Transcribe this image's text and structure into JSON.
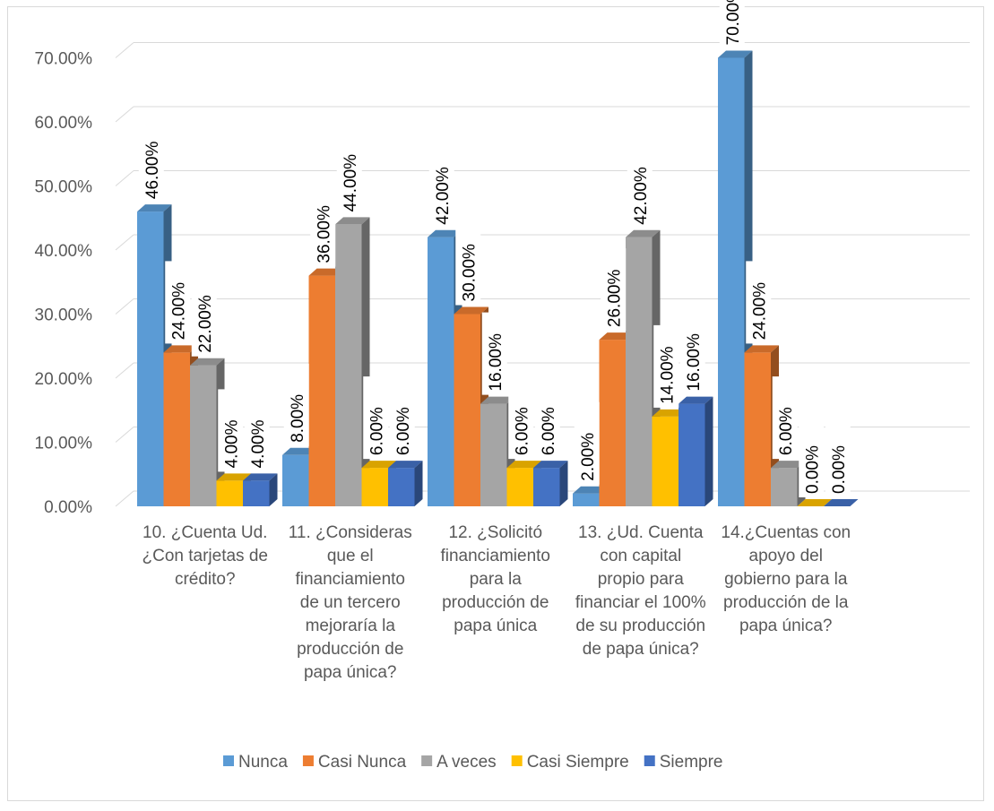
{
  "chart_data": {
    "type": "bar",
    "title": "",
    "xlabel": "",
    "ylabel": "",
    "ylim": [
      0,
      70
    ],
    "y_ticks": [
      "0.00%",
      "10.00%",
      "20.00%",
      "30.00%",
      "40.00%",
      "50.00%",
      "60.00%",
      "70.00%"
    ],
    "grid": true,
    "legend_position": "bottom",
    "categories": [
      [
        "10. ¿Cuenta Ud.",
        "¿Con tarjetas de",
        "crédito?"
      ],
      [
        "11. ¿Consideras",
        "que el",
        "financiamiento",
        "de un tercero",
        "mejoraría la",
        "producción de",
        "papa única?"
      ],
      [
        "12. ¿Solicitó",
        "financiamiento",
        "para la",
        "producción de",
        "papa única"
      ],
      [
        "13. ¿Ud. Cuenta",
        "con capital",
        "propio para",
        "financiar el 100%",
        "de su producción",
        "de papa única?"
      ],
      [
        "14.¿Cuentas con",
        "apoyo del",
        "gobierno para la",
        "producción de la",
        "papa única?"
      ]
    ],
    "series": [
      {
        "name": "Nunca",
        "color": "#5b9bd5",
        "values": [
          46,
          8,
          42,
          2,
          70
        ],
        "labels": [
          "46.00%",
          "8.00%",
          "42.00%",
          "2.00%",
          "70.00%"
        ]
      },
      {
        "name": "Casi Nunca",
        "color": "#ed7d31",
        "values": [
          24,
          36,
          30,
          26,
          24
        ],
        "labels": [
          "24.00%",
          "36.00%",
          "30.00%",
          "26.00%",
          "24.00%"
        ]
      },
      {
        "name": "A veces",
        "color": "#a5a5a5",
        "values": [
          22,
          44,
          16,
          42,
          6
        ],
        "labels": [
          "22.00%",
          "44.00%",
          "16.00%",
          "42.00%",
          "6.00%"
        ]
      },
      {
        "name": "Casi Siempre",
        "color": "#ffc000",
        "values": [
          4,
          6,
          6,
          14,
          0
        ],
        "labels": [
          "4.00%",
          "6.00%",
          "6.00%",
          "14.00%",
          "0.00%"
        ]
      },
      {
        "name": "Siempre",
        "color": "#4472c4",
        "values": [
          4,
          6,
          6,
          16,
          0
        ],
        "labels": [
          "4.00%",
          "6.00%",
          "6.00%",
          "16.00%",
          "0.00%"
        ]
      }
    ]
  }
}
